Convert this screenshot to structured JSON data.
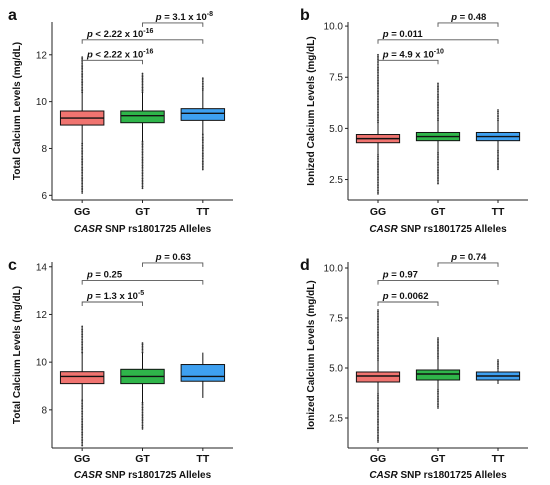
{
  "chart_data": [
    {
      "panel": "a",
      "type": "box",
      "categories": [
        "GG",
        "GT",
        "TT"
      ],
      "ylabel": "Total Calcium Levels (mg/dL)",
      "xlabel_italic": "CASR",
      "xlabel_rest": "SNP rs1801725 Alleles",
      "ylim": [
        5.8,
        13.4
      ],
      "yticks": [
        "6",
        "8",
        "10",
        "12"
      ],
      "colors": [
        "#f07470",
        "#2fb54a",
        "#3ea0f0"
      ],
      "boxes": [
        {
          "q1": 9.0,
          "median": 9.3,
          "q3": 9.6,
          "whisker_low": 8.2,
          "whisker_high": 10.4,
          "out_low": 6.1,
          "out_high": 11.9
        },
        {
          "q1": 9.1,
          "median": 9.4,
          "q3": 9.6,
          "whisker_low": 8.3,
          "whisker_high": 10.4,
          "out_low": 6.3,
          "out_high": 11.2
        },
        {
          "q1": 9.2,
          "median": 9.5,
          "q3": 9.7,
          "whisker_low": 8.6,
          "whisker_high": 10.5,
          "out_low": 7.1,
          "out_high": 11.0
        }
      ],
      "comparisons": [
        {
          "p_text": "p < 2.22 x 10",
          "exp": "-16",
          "from": 0,
          "to": 1
        },
        {
          "p_text": "p < 2.22 x 10",
          "exp": "-16",
          "from": 0,
          "to": 2
        },
        {
          "p_text": "p = 3.1 x 10",
          "exp": "-8",
          "from": 1,
          "to": 2
        }
      ]
    },
    {
      "panel": "b",
      "type": "box",
      "categories": [
        "GG",
        "GT",
        "TT"
      ],
      "ylabel": "Ionized Calcium Levels (mg/dL)",
      "xlabel_italic": "CASR",
      "xlabel_rest": "SNP rs1801725 Alleles",
      "ylim": [
        1.5,
        10.2
      ],
      "yticks": [
        "2.5",
        "5.0",
        "7.5",
        "10.0"
      ],
      "colors": [
        "#f07470",
        "#2fb54a",
        "#3ea0f0"
      ],
      "boxes": [
        {
          "q1": 4.3,
          "median": 4.5,
          "q3": 4.7,
          "whisker_low": 3.7,
          "whisker_high": 5.3,
          "out_low": 1.8,
          "out_high": 8.6
        },
        {
          "q1": 4.4,
          "median": 4.6,
          "q3": 4.8,
          "whisker_low": 3.8,
          "whisker_high": 5.4,
          "out_low": 2.3,
          "out_high": 7.2
        },
        {
          "q1": 4.4,
          "median": 4.6,
          "q3": 4.8,
          "whisker_low": 3.9,
          "whisker_high": 5.4,
          "out_low": 3.0,
          "out_high": 5.9
        }
      ],
      "comparisons": [
        {
          "p_text": "p = 4.9 x 10",
          "exp": "-10",
          "from": 0,
          "to": 1
        },
        {
          "p_text": "p = 0.011",
          "exp": "",
          "from": 0,
          "to": 2
        },
        {
          "p_text": "p = 0.48",
          "exp": "",
          "from": 1,
          "to": 2
        }
      ]
    },
    {
      "panel": "c",
      "type": "box",
      "categories": [
        "GG",
        "GT",
        "TT"
      ],
      "ylabel": "Total Calcium Levels (mg/dL)",
      "xlabel_italic": "CASR",
      "xlabel_rest": "SNP rs1801725 Alleles",
      "ylim": [
        6.4,
        14.2
      ],
      "yticks": [
        "8",
        "10",
        "12",
        "14"
      ],
      "colors": [
        "#f07470",
        "#2fb54a",
        "#3ea0f0"
      ],
      "boxes": [
        {
          "q1": 9.1,
          "median": 9.4,
          "q3": 9.6,
          "whisker_low": 8.4,
          "whisker_high": 10.4,
          "out_low": 6.5,
          "out_high": 11.5
        },
        {
          "q1": 9.1,
          "median": 9.4,
          "q3": 9.7,
          "whisker_low": 8.3,
          "whisker_high": 10.4,
          "out_low": 7.2,
          "out_high": 10.8
        },
        {
          "q1": 9.2,
          "median": 9.4,
          "q3": 9.9,
          "whisker_low": 8.5,
          "whisker_high": 10.4,
          "out_low": null,
          "out_high": null
        }
      ],
      "comparisons": [
        {
          "p_text": "p = 1.3 x 10",
          "exp": "-5",
          "from": 0,
          "to": 1
        },
        {
          "p_text": "p = 0.25",
          "exp": "",
          "from": 0,
          "to": 2
        },
        {
          "p_text": "p = 0.63",
          "exp": "",
          "from": 1,
          "to": 2
        }
      ]
    },
    {
      "panel": "d",
      "type": "box",
      "categories": [
        "GG",
        "GT",
        "TT"
      ],
      "ylabel": "Ionized Calcium Levels (mg/dL)",
      "xlabel_italic": "CASR",
      "xlabel_rest": "SNP rs1801725 Alleles",
      "ylim": [
        1.0,
        10.3
      ],
      "yticks": [
        "2.5",
        "5.0",
        "7.5",
        "10.0"
      ],
      "colors": [
        "#f07470",
        "#2fb54a",
        "#3ea0f0"
      ],
      "boxes": [
        {
          "q1": 4.3,
          "median": 4.6,
          "q3": 4.8,
          "whisker_low": 3.7,
          "whisker_high": 5.4,
          "out_low": 1.3,
          "out_high": 7.9
        },
        {
          "q1": 4.4,
          "median": 4.7,
          "q3": 4.9,
          "whisker_low": 3.9,
          "whisker_high": 5.5,
          "out_low": 3.0,
          "out_high": 6.5
        },
        {
          "q1": 4.4,
          "median": 4.6,
          "q3": 4.8,
          "whisker_low": 4.2,
          "whisker_high": 5.0,
          "out_low": null,
          "out_high": 5.4
        }
      ],
      "comparisons": [
        {
          "p_text": "p = 0.0062",
          "exp": "",
          "from": 0,
          "to": 1
        },
        {
          "p_text": "p = 0.97",
          "exp": "",
          "from": 0,
          "to": 2
        },
        {
          "p_text": "p = 0.74",
          "exp": "",
          "from": 1,
          "to": 2
        }
      ]
    }
  ]
}
